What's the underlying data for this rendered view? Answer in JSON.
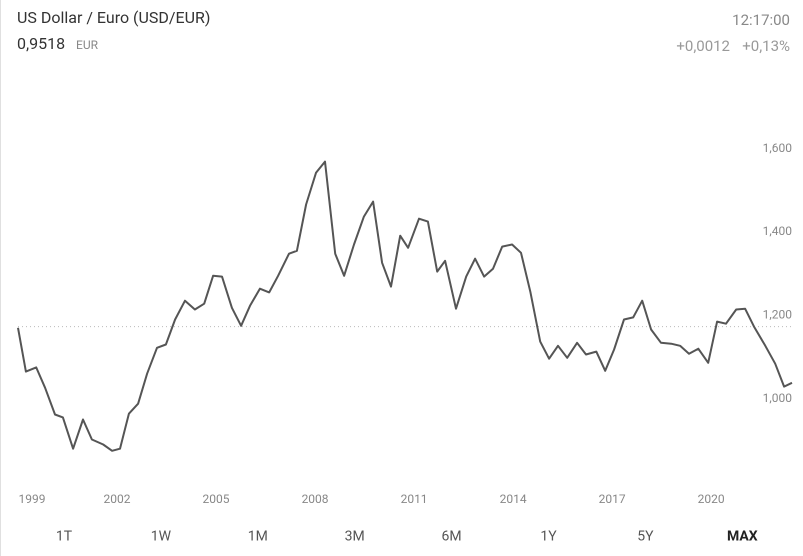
{
  "chart_data": {
    "type": "line",
    "title": "US Dollar / Euro (USD/EUR)",
    "price": "0,9518",
    "currency": "EUR",
    "time": "12:17:00",
    "change": "+0,0012",
    "change_percent": "+0,13%",
    "ranges": [
      "1T",
      "1W",
      "1M",
      "3M",
      "6M",
      "1Y",
      "5Y",
      "MAX"
    ],
    "selected_range": 7,
    "color": "#555555",
    "reference": 1.173,
    "x": [
      1999,
      1999.24,
      1999.55,
      1999.82,
      2000.12,
      2000.36,
      2000.67,
      2000.97,
      2001.24,
      2001.58,
      2001.85,
      2002.09,
      2002.36,
      2002.64,
      2002.91,
      2003.21,
      2003.48,
      2003.76,
      2004.06,
      2004.36,
      2004.64,
      2004.91,
      2005.18,
      2005.48,
      2005.76,
      2006.03,
      2006.33,
      2006.61,
      2006.88,
      2007.21,
      2007.45,
      2007.73,
      2008.03,
      2008.3,
      2008.61,
      2008.88,
      2009.18,
      2009.48,
      2009.76,
      2010.03,
      2010.3,
      2010.58,
      2010.82,
      2011.15,
      2011.42,
      2011.7,
      2011.94,
      2012.27,
      2012.58,
      2012.85,
      2013.12,
      2013.39,
      2013.67,
      2013.97,
      2014.24,
      2014.52,
      2014.82,
      2015.09,
      2015.36,
      2015.64,
      2015.94,
      2016.21,
      2016.52,
      2016.79,
      2017.06,
      2017.36,
      2017.64,
      2017.91,
      2018.18,
      2018.48,
      2018.79,
      2019.06,
      2019.33,
      2019.61,
      2019.91,
      2020.18,
      2020.45,
      2020.76,
      2021.03,
      2021.3,
      2021.64,
      2021.94,
      2022.21,
      2022.45
    ],
    "values": [
      1.17,
      1.065,
      1.075,
      1.026,
      0.962,
      0.955,
      0.88,
      0.95,
      0.902,
      0.89,
      0.875,
      0.88,
      0.964,
      0.988,
      1.06,
      1.122,
      1.13,
      1.19,
      1.235,
      1.214,
      1.228,
      1.295,
      1.293,
      1.218,
      1.175,
      1.223,
      1.264,
      1.255,
      1.295,
      1.348,
      1.355,
      1.466,
      1.542,
      1.569,
      1.348,
      1.295,
      1.37,
      1.437,
      1.473,
      1.326,
      1.269,
      1.391,
      1.362,
      1.432,
      1.425,
      1.305,
      1.331,
      1.216,
      1.293,
      1.336,
      1.293,
      1.312,
      1.365,
      1.37,
      1.35,
      1.257,
      1.137,
      1.096,
      1.127,
      1.098,
      1.134,
      1.106,
      1.113,
      1.067,
      1.118,
      1.19,
      1.195,
      1.235,
      1.166,
      1.134,
      1.132,
      1.127,
      1.108,
      1.12,
      1.086,
      1.185,
      1.18,
      1.214,
      1.216,
      1.173,
      1.127,
      1.084,
      1.029,
      1.038
    ],
    "xlim": [
      1999,
      2022.45
    ],
    "xticks": [
      1999,
      2002,
      2005,
      2008,
      2011,
      2014,
      2017,
      2020
    ],
    "ylim": [
      0.8,
      1.7
    ],
    "yticks": [
      {
        "value": 1.0,
        "label": "1,000"
      },
      {
        "value": 1.2,
        "label": "1,200"
      },
      {
        "value": 1.4,
        "label": "1,400"
      },
      {
        "value": 1.6,
        "label": "1,600"
      }
    ]
  }
}
